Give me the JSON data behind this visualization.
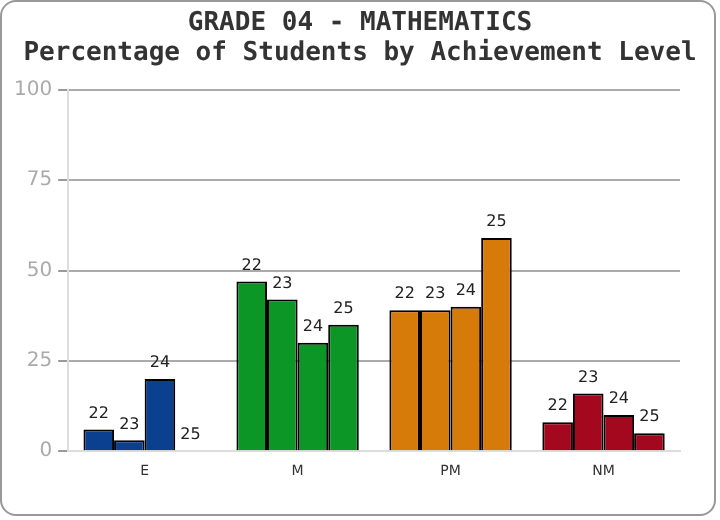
{
  "chart_data": {
    "type": "bar",
    "title": "GRADE 04 - MATHEMATICS",
    "subtitle": "Percentage of Students by Achievement Level",
    "categories": [
      "E",
      "M",
      "PM",
      "NM"
    ],
    "series": [
      {
        "name": "22",
        "colors": [
          "#0b3f8f",
          "#0c9626",
          "#d67b0a",
          "#a3081f"
        ],
        "values": [
          6,
          47,
          39,
          8
        ]
      },
      {
        "name": "23",
        "colors": [
          "#0b3f8f",
          "#0c9626",
          "#d67b0a",
          "#a3081f"
        ],
        "values": [
          3,
          42,
          39,
          16
        ]
      },
      {
        "name": "24",
        "colors": [
          "#0b3f8f",
          "#0c9626",
          "#d67b0a",
          "#a3081f"
        ],
        "values": [
          20,
          30,
          40,
          10
        ]
      },
      {
        "name": "25",
        "colors": [
          "#0b3f8f",
          "#0c9626",
          "#d67b0a",
          "#a3081f"
        ],
        "values": [
          0,
          35,
          59,
          5
        ]
      }
    ],
    "ylim": [
      0,
      100
    ],
    "yticks": [
      0,
      25,
      50,
      75,
      100
    ],
    "grid": "y",
    "legend": false
  }
}
